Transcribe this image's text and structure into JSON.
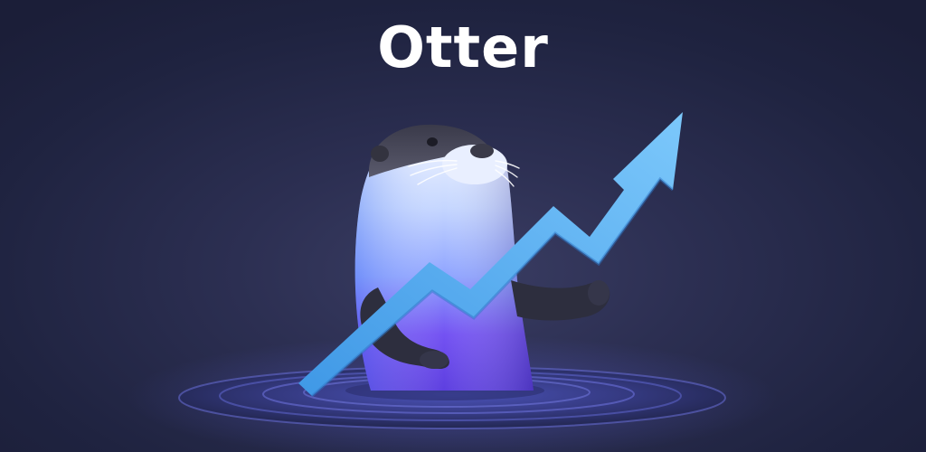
{
  "brand": {
    "name": "Otter"
  },
  "illustration": {
    "subject": "otter-mascot",
    "props": [
      "rising-arrow-chart",
      "water-ripples"
    ]
  },
  "colors": {
    "background": "#1f2340",
    "title": "#ffffff",
    "arrow": "#5fb6f5",
    "otter_light": "#dfe9ff",
    "otter_body": "#6a52f0",
    "otter_dark": "#2a2b3c",
    "water": "#3a3f8f"
  }
}
